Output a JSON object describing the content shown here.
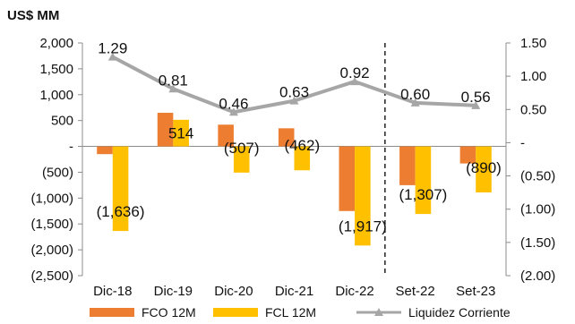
{
  "chart_data": {
    "type": "bar",
    "unit_label": "US$ MM",
    "categories": [
      "Dic-18",
      "Dic-19",
      "Dic-20",
      "Dic-21",
      "Dic-22",
      "Set-22",
      "Set-23"
    ],
    "series": [
      {
        "name": "FCO 12M",
        "type": "bar",
        "axis": "left",
        "color": "#ED7D31",
        "values": [
          -150,
          650,
          420,
          350,
          -1250,
          -750,
          -330
        ]
      },
      {
        "name": "FCL 12M",
        "type": "bar",
        "axis": "left",
        "color": "#FFC000",
        "values": [
          -1636,
          514,
          -507,
          -462,
          -1917,
          -1307,
          -890
        ],
        "labels": [
          "(1,636)",
          "514",
          "(507)",
          "(462)",
          "(1,917)",
          "(1,307)",
          "(890)"
        ]
      },
      {
        "name": "Liquidez Corriente",
        "type": "line",
        "axis": "right",
        "color": "#A6A6A6",
        "values": [
          1.29,
          0.81,
          0.46,
          0.63,
          0.92,
          0.6,
          0.56
        ],
        "labels": [
          "1.29",
          "0.81",
          "0.46",
          "0.63",
          "0.92",
          "0.60",
          "0.56"
        ]
      }
    ],
    "y_left": {
      "ylim": [
        -2500,
        2000
      ],
      "ticks": [
        2000,
        1500,
        1000,
        500,
        0,
        -500,
        -1000,
        -1500,
        -2000,
        -2500
      ],
      "tick_labels": [
        "2,000",
        "1,500",
        "1,000",
        "500",
        "-",
        "(500)",
        "(1,000)",
        "(1,500)",
        "(2,000)",
        "(2,500)"
      ]
    },
    "y_right": {
      "ylim": [
        -2.0,
        1.5
      ],
      "ticks": [
        1.5,
        1.0,
        0.5,
        0,
        -0.5,
        -1.0,
        -1.5,
        -2.0
      ],
      "tick_labels": [
        "1.50",
        "1.00",
        "0.50",
        "-",
        "(0.50)",
        "(1.00)",
        "(1.50)",
        "(2.00)"
      ]
    },
    "separator_after_category": "Dic-22",
    "legend_position": "bottom",
    "grid": false
  }
}
